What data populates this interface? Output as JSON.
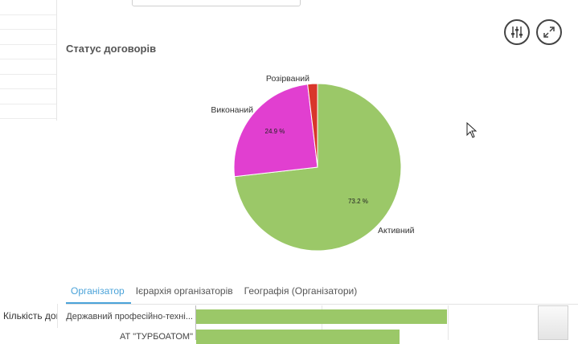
{
  "panel": {
    "title": "Статус договорів"
  },
  "chart_data": {
    "type": "pie",
    "title": "Статус договорів",
    "slices": [
      {
        "label": "Активний",
        "value": 73.2,
        "value_label": "73.2 %",
        "color": "#9bc868"
      },
      {
        "label": "Виконаний",
        "value": 24.9,
        "value_label": "24.9 %",
        "color": "#e13fd0"
      },
      {
        "label": "Розірваний",
        "value": 1.9,
        "value_label": "",
        "color": "#d9362b"
      }
    ]
  },
  "tabs": [
    {
      "label": "Організатор",
      "active": true
    },
    {
      "label": "Ієрархія організаторів",
      "active": false
    },
    {
      "label": "Географія (Організатори)",
      "active": false
    }
  ],
  "side_label": "Кількість дог",
  "bars": [
    {
      "label": "Державний професійно-техні...",
      "value": 100
    },
    {
      "label": "АТ \"ТУРБОАТОМ\"",
      "value": 81
    }
  ],
  "icons": {
    "filter": "sliders-icon",
    "expand": "expand-icon",
    "cursor": "mouse-cursor-icon"
  }
}
